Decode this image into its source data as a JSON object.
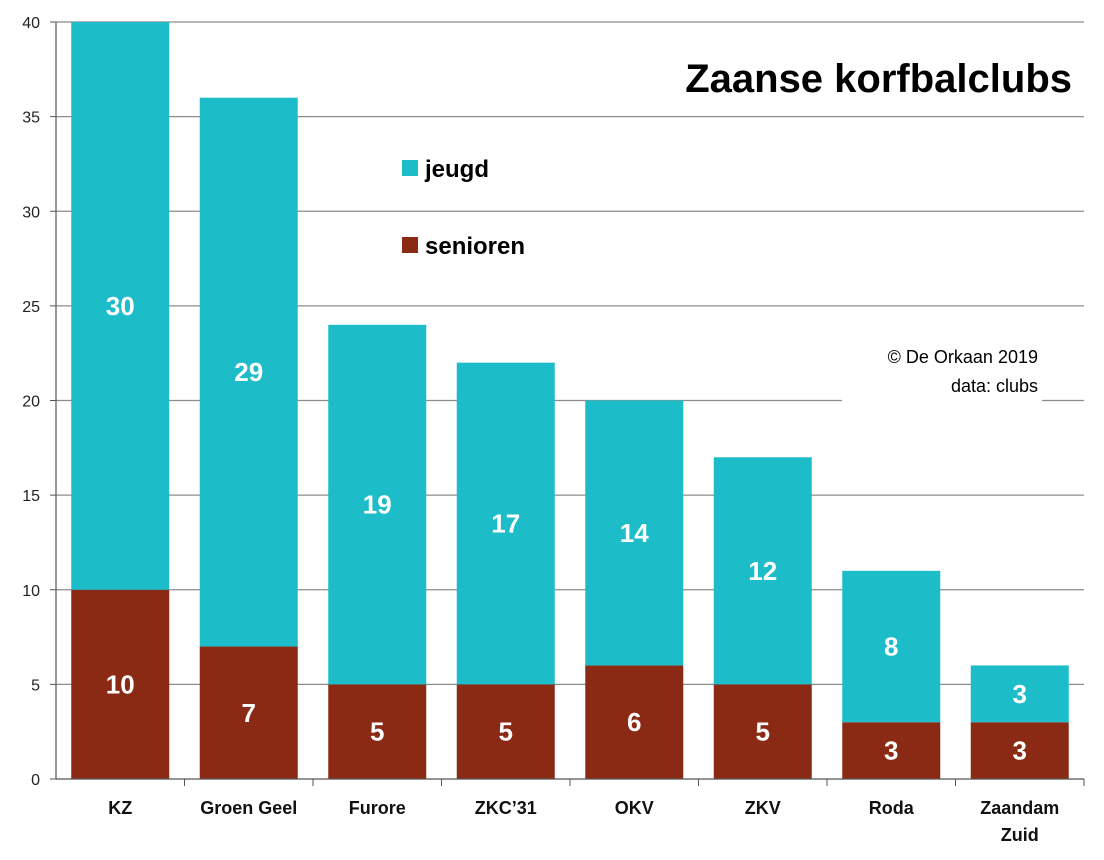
{
  "chart_data": {
    "type": "bar",
    "stacked": true,
    "title": "Zaanse korfbalclubs",
    "categories": [
      [
        "KZ"
      ],
      [
        "Groen Geel"
      ],
      [
        "Furore"
      ],
      [
        "ZKC’31"
      ],
      [
        "OKV"
      ],
      [
        "ZKV"
      ],
      [
        "Roda"
      ],
      [
        "Zaandam",
        "Zuid"
      ]
    ],
    "series": [
      {
        "name": "senioren",
        "color": "#8B2A14",
        "values": [
          10,
          7,
          5,
          5,
          6,
          5,
          3,
          3
        ]
      },
      {
        "name": "jeugd",
        "color": "#1CBDC9",
        "values": [
          30,
          29,
          19,
          17,
          14,
          12,
          8,
          3
        ]
      }
    ],
    "ylim": [
      0,
      40
    ],
    "yticks": [
      0,
      5,
      10,
      15,
      20,
      25,
      30,
      35,
      40
    ],
    "grid": true,
    "legend_order": [
      "jeugd",
      "senioren"
    ],
    "credit": [
      "© De Orkaan 2019",
      "data: clubs"
    ],
    "xlabel": "",
    "ylabel": ""
  }
}
